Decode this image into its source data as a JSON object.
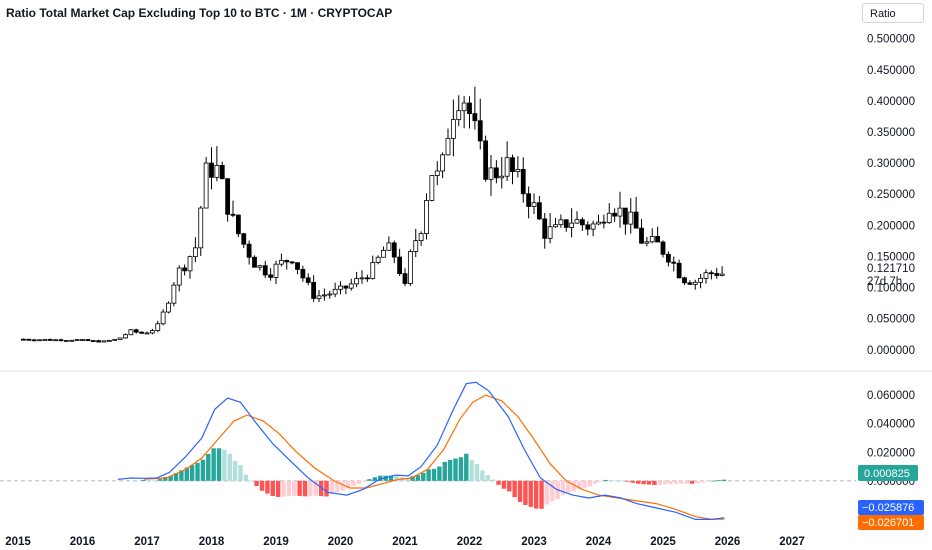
{
  "header": {
    "title": "Ratio Total Market Cap Excluding Top 10 to BTC · 1M · CRYPTOCAP",
    "scale_label": "Ratio"
  },
  "price_pane": {
    "last_value": "0.121710",
    "countdown": "27d 7h",
    "last_color": "#131722"
  },
  "macd_pane": {
    "hist_label": "0.000825",
    "macd_label": "−0.025876",
    "signal_label": "−0.026701",
    "hist_color": "#26a69a",
    "macd_color": "#2962ff",
    "signal_color": "#ff6d00"
  },
  "colors": {
    "up_body": "#ffffff",
    "down_body": "#000000",
    "hist_pos_strong": "#26a69a",
    "hist_pos_weak": "#b2dfdb",
    "hist_neg_strong": "#ff5252",
    "hist_neg_weak": "#ffcdd2"
  },
  "chart_data": [
    {
      "type": "candlestick",
      "title": "Ratio Total Market Cap Excluding Top 10 to BTC · 1M · CRYPTOCAP",
      "x_ticks": [
        "2015",
        "2016",
        "2017",
        "2018",
        "2019",
        "2020",
        "2021",
        "2022",
        "2023",
        "2024",
        "2025",
        "2026",
        "2027"
      ],
      "y_ticks": [
        "0.500000",
        "0.450000",
        "0.400000",
        "0.350000",
        "0.300000",
        "0.250000",
        "0.200000",
        "0.150000",
        "0.100000",
        "0.050000",
        "0.000000"
      ],
      "ylim": [
        -0.01,
        0.53
      ],
      "x_start": 2015.0,
      "x_end": 2027.4,
      "scale": "linear",
      "close_points": [
        [
          2015.0,
          0.017
        ],
        [
          2015.5,
          0.016
        ],
        [
          2015.9,
          0.016
        ],
        [
          2016.3,
          0.013
        ],
        [
          2016.55,
          0.017
        ],
        [
          2016.75,
          0.03
        ],
        [
          2016.95,
          0.026
        ],
        [
          2017.15,
          0.035
        ],
        [
          2017.3,
          0.07
        ],
        [
          2017.45,
          0.12
        ],
        [
          2017.6,
          0.14
        ],
        [
          2017.75,
          0.165
        ],
        [
          2017.9,
          0.28
        ],
        [
          2018.05,
          0.3
        ],
        [
          2018.2,
          0.25
        ],
        [
          2018.35,
          0.2
        ],
        [
          2018.5,
          0.17
        ],
        [
          2018.7,
          0.135
        ],
        [
          2018.9,
          0.125
        ],
        [
          2019.1,
          0.14
        ],
        [
          2019.25,
          0.15
        ],
        [
          2019.45,
          0.11
        ],
        [
          2019.6,
          0.085
        ],
        [
          2019.8,
          0.09
        ],
        [
          2020.0,
          0.095
        ],
        [
          2020.25,
          0.11
        ],
        [
          2020.5,
          0.13
        ],
        [
          2020.7,
          0.165
        ],
        [
          2020.85,
          0.15
        ],
        [
          2021.0,
          0.1
        ],
        [
          2021.1,
          0.16
        ],
        [
          2021.25,
          0.2
        ],
        [
          2021.4,
          0.29
        ],
        [
          2021.55,
          0.27
        ],
        [
          2021.7,
          0.38
        ],
        [
          2021.85,
          0.42
        ],
        [
          2021.95,
          0.4
        ],
        [
          2022.05,
          0.36
        ],
        [
          2022.2,
          0.3
        ],
        [
          2022.35,
          0.28
        ],
        [
          2022.55,
          0.3
        ],
        [
          2022.75,
          0.27
        ],
        [
          2022.95,
          0.24
        ],
        [
          2023.15,
          0.19
        ],
        [
          2023.35,
          0.19
        ],
        [
          2023.55,
          0.21
        ],
        [
          2023.8,
          0.2
        ],
        [
          2024.0,
          0.2
        ],
        [
          2024.15,
          0.24
        ],
        [
          2024.35,
          0.22
        ],
        [
          2024.55,
          0.2
        ],
        [
          2024.7,
          0.17
        ],
        [
          2024.9,
          0.17
        ],
        [
          2025.1,
          0.15
        ],
        [
          2025.3,
          0.115
        ],
        [
          2025.5,
          0.11
        ],
        [
          2025.65,
          0.12
        ],
        [
          2025.8,
          0.125
        ],
        [
          2025.95,
          0.1217
        ]
      ],
      "last_value": 0.12171
    },
    {
      "type": "bar+line",
      "name": "MACD",
      "ylim": [
        -0.033,
        0.072
      ],
      "y_ticks": [
        "0.060000",
        "0.040000",
        "0.020000",
        "0.000000",
        "−0.020000"
      ],
      "macd_points": [
        [
          2016.55,
          0.001
        ],
        [
          2016.75,
          0.002
        ],
        [
          2016.95,
          0.0018
        ],
        [
          2017.15,
          0.002
        ],
        [
          2017.35,
          0.006
        ],
        [
          2017.6,
          0.017
        ],
        [
          2017.85,
          0.03
        ],
        [
          2018.05,
          0.05
        ],
        [
          2018.25,
          0.058
        ],
        [
          2018.45,
          0.055
        ],
        [
          2018.7,
          0.04
        ],
        [
          2018.95,
          0.026
        ],
        [
          2019.2,
          0.015
        ],
        [
          2019.5,
          0.002
        ],
        [
          2019.8,
          -0.008
        ],
        [
          2020.1,
          -0.01
        ],
        [
          2020.35,
          -0.006
        ],
        [
          2020.6,
          0.001
        ],
        [
          2020.85,
          0.004
        ],
        [
          2021.05,
          0.0035
        ],
        [
          2021.25,
          0.01
        ],
        [
          2021.5,
          0.025
        ],
        [
          2021.75,
          0.05
        ],
        [
          2021.95,
          0.068
        ],
        [
          2022.1,
          0.069
        ],
        [
          2022.3,
          0.063
        ],
        [
          2022.6,
          0.045
        ],
        [
          2022.85,
          0.022
        ],
        [
          2023.1,
          0.002
        ],
        [
          2023.35,
          -0.006
        ],
        [
          2023.6,
          -0.01
        ],
        [
          2023.85,
          -0.012
        ],
        [
          2024.1,
          -0.01
        ],
        [
          2024.35,
          -0.012
        ],
        [
          2024.6,
          -0.016
        ],
        [
          2024.9,
          -0.019
        ],
        [
          2025.2,
          -0.022
        ],
        [
          2025.5,
          -0.027
        ],
        [
          2025.75,
          -0.027
        ],
        [
          2025.95,
          -0.025876
        ]
      ],
      "signal_points": [
        [
          2016.95,
          0.0012
        ],
        [
          2017.3,
          0.002
        ],
        [
          2017.6,
          0.008
        ],
        [
          2017.85,
          0.016
        ],
        [
          2018.1,
          0.029
        ],
        [
          2018.35,
          0.042
        ],
        [
          2018.55,
          0.046
        ],
        [
          2018.8,
          0.042
        ],
        [
          2019.05,
          0.033
        ],
        [
          2019.3,
          0.021
        ],
        [
          2019.6,
          0.009
        ],
        [
          2019.9,
          0.0
        ],
        [
          2020.15,
          -0.005
        ],
        [
          2020.4,
          -0.005
        ],
        [
          2020.65,
          -0.002
        ],
        [
          2020.9,
          0.001
        ],
        [
          2021.1,
          0.002
        ],
        [
          2021.35,
          0.008
        ],
        [
          2021.6,
          0.022
        ],
        [
          2021.85,
          0.043
        ],
        [
          2022.05,
          0.055
        ],
        [
          2022.25,
          0.06
        ],
        [
          2022.5,
          0.056
        ],
        [
          2022.75,
          0.045
        ],
        [
          2023.0,
          0.029
        ],
        [
          2023.25,
          0.012
        ],
        [
          2023.5,
          0.0
        ],
        [
          2023.75,
          -0.006
        ],
        [
          2024.0,
          -0.01
        ],
        [
          2024.3,
          -0.012
        ],
        [
          2024.6,
          -0.014
        ],
        [
          2024.9,
          -0.016
        ],
        [
          2025.2,
          -0.02
        ],
        [
          2025.5,
          -0.025
        ],
        [
          2025.75,
          -0.027
        ],
        [
          2025.95,
          -0.026701
        ]
      ],
      "histogram_last": 0.000825,
      "macd_last": -0.025876,
      "signal_last": -0.026701
    }
  ]
}
